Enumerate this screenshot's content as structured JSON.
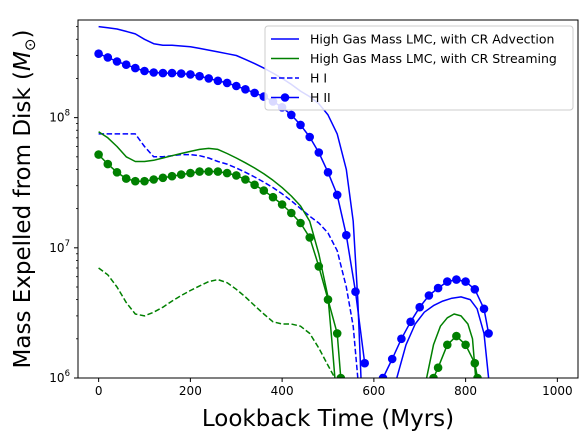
{
  "chart_data": {
    "type": "line",
    "xlabel": "Lookback Time (Myrs)",
    "ylabel": "Mass Expelled from Disk (M⊙)",
    "xlim": [
      -45,
      1045
    ],
    "ylim_log10": [
      6,
      8.75
    ],
    "x_ticks": [
      0,
      200,
      400,
      600,
      800,
      1000
    ],
    "y_ticks": [
      {
        "label": "10",
        "exp": "6",
        "log10": 6
      },
      {
        "label": "10",
        "exp": "7",
        "log10": 7
      },
      {
        "label": "10",
        "exp": "8",
        "log10": 8
      }
    ],
    "legend": {
      "location": "upper right",
      "entries": [
        {
          "label": "High Gas Mass LMC, with CR Advection",
          "color": "#0000ff",
          "style": "solid",
          "marker": false
        },
        {
          "label": "High Gas Mass LMC, with CR Streaming",
          "color": "#008000",
          "style": "solid",
          "marker": false
        },
        {
          "label": "H I",
          "color": "#0000ff",
          "style": "dashed",
          "marker": false
        },
        {
          "label": "H II",
          "color": "#0000ff",
          "style": "solid",
          "marker": true
        }
      ]
    },
    "series": [
      {
        "key": "adv-total",
        "color": "#0000ff",
        "style": "solid",
        "marker": false,
        "segments": [
          [
            [
              0,
              500000000.0
            ],
            [
              20,
              490000000.0
            ],
            [
              40,
              480000000.0
            ],
            [
              60,
              460000000.0
            ],
            [
              80,
              440000000.0
            ],
            [
              100,
              400000000.0
            ],
            [
              120,
              370000000.0
            ],
            [
              140,
              360000000.0
            ],
            [
              160,
              360000000.0
            ],
            [
              180,
              355000000.0
            ],
            [
              200,
              350000000.0
            ],
            [
              220,
              340000000.0
            ],
            [
              240,
              330000000.0
            ],
            [
              260,
              320000000.0
            ],
            [
              280,
              310000000.0
            ],
            [
              300,
              300000000.0
            ],
            [
              320,
              280000000.0
            ],
            [
              340,
              260000000.0
            ],
            [
              360,
              240000000.0
            ],
            [
              380,
              220000000.0
            ],
            [
              400,
              200000000.0
            ],
            [
              420,
              180000000.0
            ],
            [
              440,
              160000000.0
            ],
            [
              460,
              145000000.0
            ],
            [
              480,
              128000000.0
            ],
            [
              500,
              105000000.0
            ],
            [
              520,
              75000000.0
            ],
            [
              540,
              40000000.0
            ],
            [
              555,
              16000000.0
            ],
            [
              565,
              4000000.0
            ],
            [
              572,
              1000000.0
            ]
          ],
          [
            [
              650,
              1000000.0
            ],
            [
              670,
              1800000.0
            ],
            [
              690,
              2600000.0
            ],
            [
              710,
              3200000.0
            ],
            [
              730,
              3600000.0
            ],
            [
              750,
              3900000.0
            ],
            [
              770,
              4100000.0
            ],
            [
              790,
              4200000.0
            ],
            [
              810,
              4000000.0
            ],
            [
              825,
              3400000.0
            ],
            [
              840,
              2200000.0
            ],
            [
              850,
              1000000.0
            ]
          ]
        ]
      },
      {
        "key": "adv-hii",
        "color": "#0000ff",
        "style": "solid",
        "marker": true,
        "segments": [
          [
            [
              0,
              310000000.0
            ],
            [
              20,
              290000000.0
            ],
            [
              40,
              270000000.0
            ],
            [
              60,
              255000000.0
            ],
            [
              80,
              240000000.0
            ],
            [
              100,
              228000000.0
            ],
            [
              120,
              222000000.0
            ],
            [
              140,
              220000000.0
            ],
            [
              160,
              220000000.0
            ],
            [
              180,
              218000000.0
            ],
            [
              200,
              215000000.0
            ],
            [
              220,
              208000000.0
            ],
            [
              240,
              200000000.0
            ],
            [
              260,
              192000000.0
            ],
            [
              280,
              185000000.0
            ],
            [
              300,
              175000000.0
            ],
            [
              320,
              165000000.0
            ],
            [
              340,
              155000000.0
            ],
            [
              360,
              145000000.0
            ],
            [
              380,
              133000000.0
            ],
            [
              400,
              120000000.0
            ],
            [
              420,
              105000000.0
            ],
            [
              440,
              88000000.0
            ],
            [
              460,
              71000000.0
            ],
            [
              480,
              54000000.0
            ],
            [
              500,
              38000000.0
            ],
            [
              520,
              25500000.0
            ],
            [
              540,
              12500000.0
            ],
            [
              560,
              4600000.0
            ],
            [
              580,
              1300000.0
            ]
          ],
          [
            [
              620,
              1000000.0
            ],
            [
              640,
              1400000.0
            ],
            [
              660,
              2000000.0
            ],
            [
              680,
              2700000.0
            ],
            [
              700,
              3500000.0
            ],
            [
              720,
              4300000.0
            ],
            [
              740,
              4900000.0
            ],
            [
              760,
              5500000.0
            ],
            [
              780,
              5700000.0
            ],
            [
              800,
              5500000.0
            ],
            [
              820,
              4800000.0
            ],
            [
              840,
              3400000.0
            ],
            [
              850,
              2200000.0
            ]
          ]
        ]
      },
      {
        "key": "adv-hi",
        "color": "#0000ff",
        "style": "dashed",
        "marker": false,
        "segments": [
          [
            [
              0,
              75000000.0
            ],
            [
              20,
              75000000.0
            ],
            [
              40,
              75000000.0
            ],
            [
              60,
              75000000.0
            ],
            [
              80,
              75000000.0
            ],
            [
              100,
              60000000.0
            ],
            [
              120,
              50000000.0
            ],
            [
              140,
              50000000.0
            ],
            [
              160,
              51000000.0
            ],
            [
              180,
              52000000.0
            ],
            [
              200,
              52000000.0
            ],
            [
              220,
              51000000.0
            ],
            [
              240,
              49000000.0
            ],
            [
              260,
              46000000.0
            ],
            [
              280,
              44000000.0
            ],
            [
              300,
              41000000.0
            ],
            [
              320,
              38000000.0
            ],
            [
              340,
              35000000.0
            ],
            [
              360,
              32000000.0
            ],
            [
              380,
              29000000.0
            ],
            [
              400,
              26000000.0
            ],
            [
              420,
              23000000.0
            ],
            [
              440,
              20000000.0
            ],
            [
              460,
              17500000.0
            ],
            [
              480,
              15500000.0
            ],
            [
              500,
              13000000.0
            ],
            [
              520,
              9500000.0
            ],
            [
              540,
              5000000.0
            ],
            [
              555,
              2500000.0
            ],
            [
              565,
              1000000.0
            ]
          ]
        ]
      },
      {
        "key": "str-total",
        "color": "#008000",
        "style": "solid",
        "marker": false,
        "segments": [
          [
            [
              0,
              78000000.0
            ],
            [
              20,
              70000000.0
            ],
            [
              40,
              60000000.0
            ],
            [
              60,
              50000000.0
            ],
            [
              80,
              46000000.0
            ],
            [
              100,
              46000000.0
            ],
            [
              120,
              47000000.0
            ],
            [
              140,
              49000000.0
            ],
            [
              160,
              51000000.0
            ],
            [
              180,
              53000000.0
            ],
            [
              200,
              55000000.0
            ],
            [
              220,
              57000000.0
            ],
            [
              240,
              58000000.0
            ],
            [
              260,
              57000000.0
            ],
            [
              280,
              53000000.0
            ],
            [
              300,
              49000000.0
            ],
            [
              320,
              45000000.0
            ],
            [
              340,
              41000000.0
            ],
            [
              360,
              37000000.0
            ],
            [
              380,
              33000000.0
            ],
            [
              400,
              29000000.0
            ],
            [
              420,
              25000000.0
            ],
            [
              440,
              21000000.0
            ],
            [
              460,
              16000000.0
            ],
            [
              480,
              9000000.0
            ],
            [
              500,
              4200000.0
            ],
            [
              508,
              2000000.0
            ],
            [
              515,
              1000000.0
            ]
          ],
          [
            [
              715,
              1000000.0
            ],
            [
              730,
              1800000.0
            ],
            [
              745,
              2500000.0
            ],
            [
              760,
              2900000.0
            ],
            [
              775,
              3100000.0
            ],
            [
              790,
              3000000.0
            ],
            [
              805,
              2600000.0
            ],
            [
              815,
              2000000.0
            ],
            [
              822,
              1000000.0
            ]
          ]
        ]
      },
      {
        "key": "str-hii",
        "color": "#008000",
        "style": "solid",
        "marker": true,
        "segments": [
          [
            [
              0,
              52000000.0
            ],
            [
              20,
              44000000.0
            ],
            [
              40,
              38000000.0
            ],
            [
              60,
              34000000.0
            ],
            [
              80,
              32500000.0
            ],
            [
              100,
              32500000.0
            ],
            [
              120,
              33500000.0
            ],
            [
              140,
              34500000.0
            ],
            [
              160,
              35500000.0
            ],
            [
              180,
              36500000.0
            ],
            [
              200,
              37500000.0
            ],
            [
              220,
              38500000.0
            ],
            [
              240,
              38500000.0
            ],
            [
              260,
              38500000.0
            ],
            [
              280,
              37500000.0
            ],
            [
              300,
              36000000.0
            ],
            [
              320,
              33500000.0
            ],
            [
              340,
              30500000.0
            ],
            [
              360,
              27500000.0
            ],
            [
              380,
              24500000.0
            ],
            [
              400,
              21500000.0
            ],
            [
              420,
              18500000.0
            ],
            [
              440,
              15500000.0
            ],
            [
              460,
              12000000.0
            ],
            [
              480,
              7200000.0
            ],
            [
              500,
              4000000.0
            ],
            [
              520,
              2200000.0
            ],
            [
              528,
              1000000.0
            ]
          ],
          [
            [
              730,
              1000000.0
            ],
            [
              740,
              1200000.0
            ],
            [
              760,
              1800000.0
            ],
            [
              780,
              2100000.0
            ],
            [
              800,
              1800000.0
            ],
            [
              820,
              1300000.0
            ],
            [
              826,
              1000000.0
            ]
          ]
        ]
      },
      {
        "key": "str-hi",
        "color": "#008000",
        "style": "dashed",
        "marker": false,
        "segments": [
          [
            [
              0,
              7000000.0
            ],
            [
              20,
              6200000.0
            ],
            [
              40,
              5000000.0
            ],
            [
              60,
              3800000.0
            ],
            [
              80,
              3100000.0
            ],
            [
              100,
              3000000.0
            ],
            [
              120,
              3200000.0
            ],
            [
              140,
              3500000.0
            ],
            [
              160,
              3900000.0
            ],
            [
              180,
              4300000.0
            ],
            [
              200,
              4700000.0
            ],
            [
              220,
              5100000.0
            ],
            [
              240,
              5500000.0
            ],
            [
              260,
              5700000.0
            ],
            [
              280,
              5400000.0
            ],
            [
              300,
              4800000.0
            ],
            [
              320,
              4200000.0
            ],
            [
              340,
              3600000.0
            ],
            [
              360,
              3100000.0
            ],
            [
              380,
              2700000.0
            ],
            [
              400,
              2600000.0
            ],
            [
              420,
              2600000.0
            ],
            [
              440,
              2500000.0
            ],
            [
              460,
              2200000.0
            ],
            [
              480,
              1700000.0
            ],
            [
              500,
              1250000.0
            ],
            [
              515,
              1000000.0
            ]
          ]
        ]
      }
    ]
  }
}
